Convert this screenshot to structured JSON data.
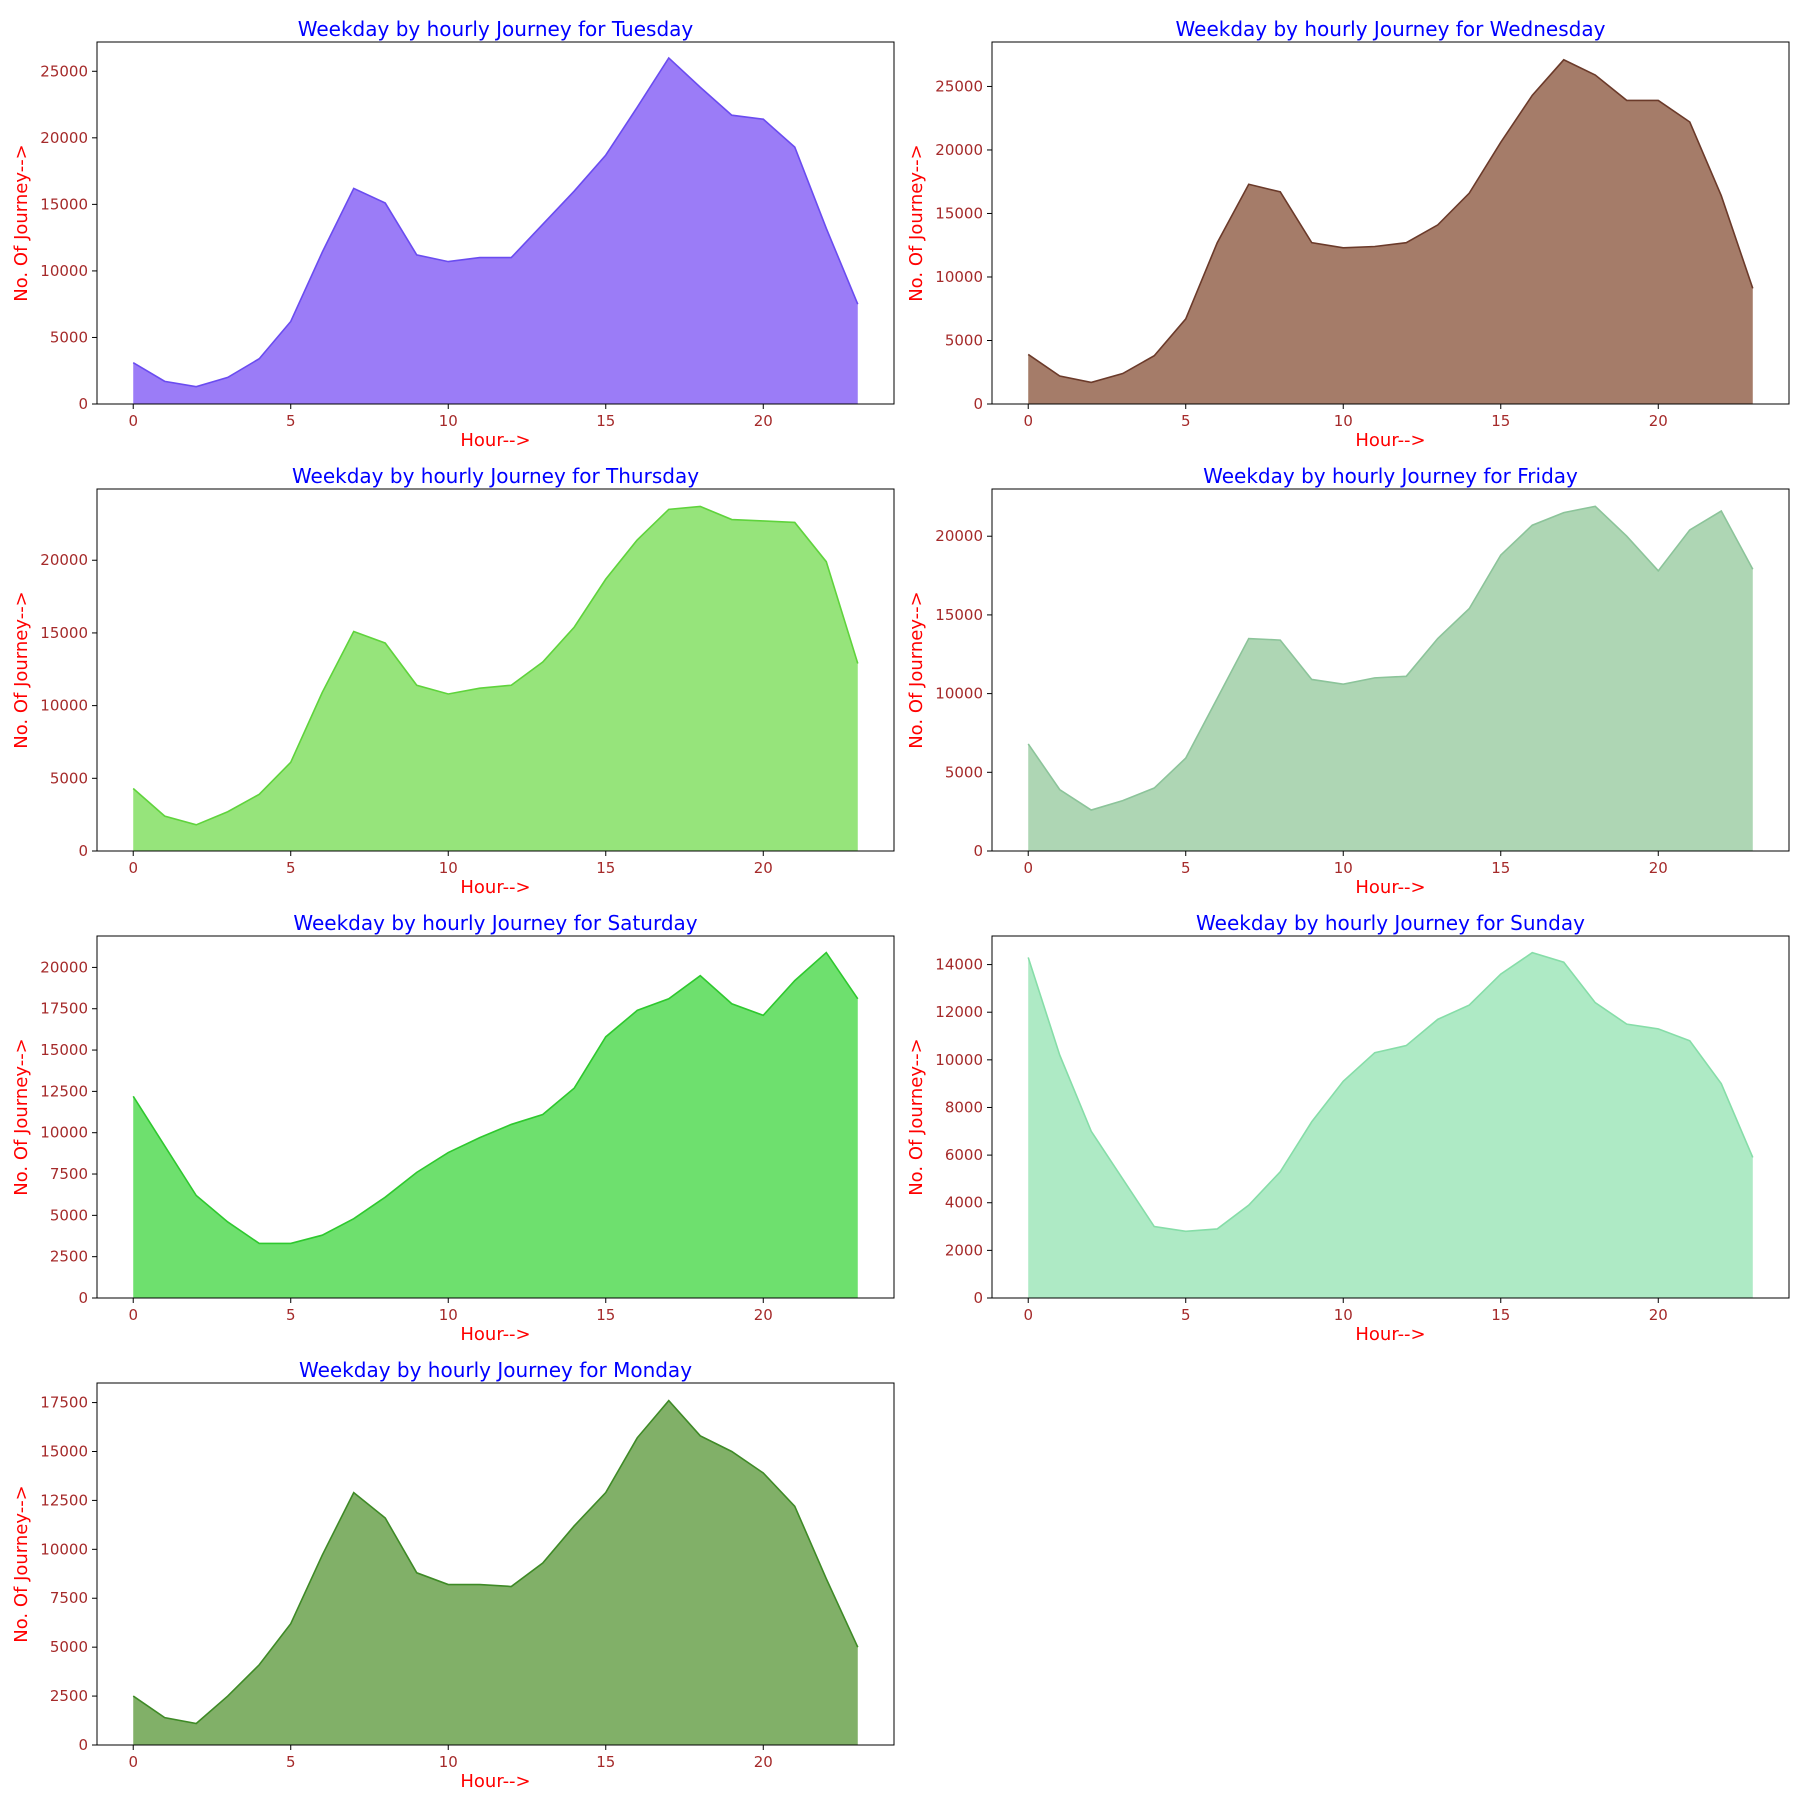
{
  "chart_data": [
    {
      "type": "area",
      "title": "Weekday by hourly Journey for Tuesday",
      "xlabel": "Hour-->",
      "ylabel": "No. Of Journey-->",
      "fill_color": "#9b7cf7",
      "line_color": "#6a4cf0",
      "xlim": [
        -1.15,
        24.15
      ],
      "ylim": [
        0,
        27200
      ],
      "xticks": [
        0,
        5,
        10,
        15,
        20
      ],
      "yticks": [
        0,
        5000,
        10000,
        15000,
        20000,
        25000
      ],
      "x": [
        0,
        1,
        2,
        3,
        4,
        5,
        6,
        7,
        8,
        9,
        10,
        11,
        12,
        13,
        14,
        15,
        16,
        17,
        18,
        19,
        20,
        21,
        22,
        23
      ],
      "values": [
        3100,
        1700,
        1300,
        2000,
        3400,
        6200,
        11400,
        16200,
        15100,
        11200,
        10700,
        11000,
        11000,
        13500,
        16000,
        18700,
        22300,
        26000,
        23800,
        21700,
        21400,
        19300,
        13200,
        7500
      ]
    },
    {
      "type": "area",
      "title": "Weekday by hourly Journey for Wednesday",
      "xlabel": "Hour-->",
      "ylabel": "No. Of Journey-->",
      "fill_color": "#a57c69",
      "line_color": "#6b3a2a",
      "xlim": [
        -1.15,
        24.15
      ],
      "ylim": [
        0,
        28500
      ],
      "xticks": [
        0,
        5,
        10,
        15,
        20
      ],
      "yticks": [
        0,
        5000,
        10000,
        15000,
        20000,
        25000
      ],
      "x": [
        0,
        1,
        2,
        3,
        4,
        5,
        6,
        7,
        8,
        9,
        10,
        11,
        12,
        13,
        14,
        15,
        16,
        17,
        18,
        19,
        20,
        21,
        22,
        23
      ],
      "values": [
        3900,
        2200,
        1700,
        2400,
        3800,
        6700,
        12700,
        17300,
        16700,
        12700,
        12300,
        12400,
        12700,
        14100,
        16600,
        20600,
        24300,
        27100,
        25900,
        23900,
        23900,
        22200,
        16400,
        9100
      ]
    },
    {
      "type": "area",
      "title": "Weekday by hourly Journey for Thursday",
      "xlabel": "Hour-->",
      "ylabel": "No. Of Journey-->",
      "fill_color": "#96e47b",
      "line_color": "#5fd33c",
      "xlim": [
        -1.15,
        24.15
      ],
      "ylim": [
        0,
        24900
      ],
      "xticks": [
        0,
        5,
        10,
        15,
        20
      ],
      "yticks": [
        0,
        5000,
        10000,
        15000,
        20000
      ],
      "x": [
        0,
        1,
        2,
        3,
        4,
        5,
        6,
        7,
        8,
        9,
        10,
        11,
        12,
        13,
        14,
        15,
        16,
        17,
        18,
        19,
        20,
        21,
        22,
        23
      ],
      "values": [
        4300,
        2400,
        1800,
        2700,
        3900,
        6100,
        10900,
        15100,
        14300,
        11400,
        10800,
        11200,
        11400,
        13000,
        15400,
        18700,
        21400,
        23500,
        23700,
        22800,
        22700,
        22600,
        19900,
        12900
      ]
    },
    {
      "type": "area",
      "title": "Weekday by hourly Journey for Friday",
      "xlabel": "Hour-->",
      "ylabel": "No. Of Journey-->",
      "fill_color": "#aed6b4",
      "line_color": "#8cc49a",
      "xlim": [
        -1.15,
        24.15
      ],
      "ylim": [
        0,
        23000
      ],
      "xticks": [
        0,
        5,
        10,
        15,
        20
      ],
      "yticks": [
        0,
        5000,
        10000,
        15000,
        20000
      ],
      "x": [
        0,
        1,
        2,
        3,
        4,
        5,
        6,
        7,
        8,
        9,
        10,
        11,
        12,
        13,
        14,
        15,
        16,
        17,
        18,
        19,
        20,
        21,
        22,
        23
      ],
      "values": [
        6800,
        3900,
        2600,
        3200,
        4000,
        5900,
        9700,
        13500,
        13400,
        10900,
        10600,
        11000,
        11100,
        13500,
        15400,
        18800,
        20700,
        21500,
        21900,
        20000,
        17800,
        20400,
        21600,
        17900
      ]
    },
    {
      "type": "area",
      "title": "Weekday by hourly Journey for Saturday",
      "xlabel": "Hour-->",
      "ylabel": "No. Of Journey-->",
      "fill_color": "#6ee06e",
      "line_color": "#2ec82e",
      "xlim": [
        -1.15,
        24.15
      ],
      "ylim": [
        0,
        21900
      ],
      "xticks": [
        0,
        5,
        10,
        15,
        20
      ],
      "yticks": [
        0,
        2500,
        5000,
        7500,
        10000,
        12500,
        15000,
        17500,
        20000
      ],
      "x": [
        0,
        1,
        2,
        3,
        4,
        5,
        6,
        7,
        8,
        9,
        10,
        11,
        12,
        13,
        14,
        15,
        16,
        17,
        18,
        19,
        20,
        21,
        22,
        23
      ],
      "values": [
        12200,
        9200,
        6200,
        4600,
        3300,
        3300,
        3800,
        4800,
        6100,
        7600,
        8800,
        9700,
        10500,
        11100,
        12700,
        15800,
        17400,
        18100,
        19500,
        17800,
        17100,
        19200,
        20900,
        18100
      ]
    },
    {
      "type": "area",
      "title": "Weekday by hourly Journey for Sunday",
      "xlabel": "Hour-->",
      "ylabel": "No. Of Journey-->",
      "fill_color": "#aeeac5",
      "line_color": "#86dda8",
      "xlim": [
        -1.15,
        24.15
      ],
      "ylim": [
        0,
        15200
      ],
      "xticks": [
        0,
        5,
        10,
        15,
        20
      ],
      "yticks": [
        0,
        2000,
        4000,
        6000,
        8000,
        10000,
        12000,
        14000
      ],
      "x": [
        0,
        1,
        2,
        3,
        4,
        5,
        6,
        7,
        8,
        9,
        10,
        11,
        12,
        13,
        14,
        15,
        16,
        17,
        18,
        19,
        20,
        21,
        22,
        23
      ],
      "values": [
        14300,
        10200,
        7000,
        5000,
        3000,
        2800,
        2900,
        3900,
        5300,
        7400,
        9100,
        10300,
        10600,
        11700,
        12300,
        13600,
        14500,
        14100,
        12400,
        11500,
        11300,
        10800,
        9000,
        5900
      ]
    },
    {
      "type": "area",
      "title": "Weekday by hourly Journey for Monday",
      "xlabel": "Hour-->",
      "ylabel": "No. Of Journey-->",
      "fill_color": "#81b068",
      "line_color": "#3e8a26",
      "xlim": [
        -1.15,
        24.15
      ],
      "ylim": [
        0,
        18500
      ],
      "xticks": [
        0,
        5,
        10,
        15,
        20
      ],
      "yticks": [
        0,
        2500,
        5000,
        7500,
        10000,
        12500,
        15000,
        17500
      ],
      "x": [
        0,
        1,
        2,
        3,
        4,
        5,
        6,
        7,
        8,
        9,
        10,
        11,
        12,
        13,
        14,
        15,
        16,
        17,
        18,
        19,
        20,
        21,
        22,
        23
      ],
      "values": [
        2500,
        1400,
        1100,
        2500,
        4100,
        6200,
        9700,
        12900,
        11600,
        8800,
        8200,
        8200,
        8100,
        9300,
        11200,
        12900,
        15700,
        17600,
        15800,
        15000,
        13900,
        12200,
        8500,
        5000
      ]
    }
  ]
}
